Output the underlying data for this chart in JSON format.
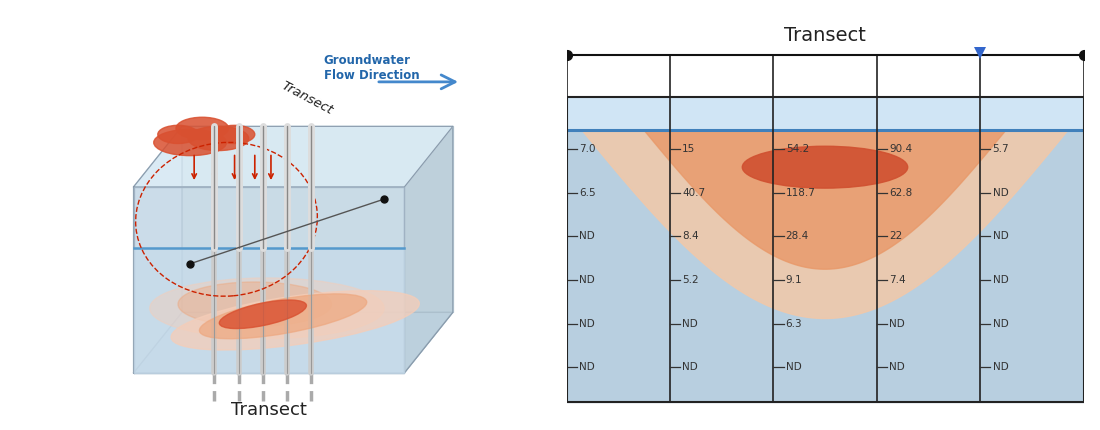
{
  "title_left": "Transect",
  "title_right": "Transect",
  "bg_color": "#ffffff",
  "left_panel": {
    "plume_outer": "#f5cdb8",
    "plume_mid": "#eda880",
    "plume_inner": "#d95030",
    "surface_plume_color": "#d95030",
    "water_table_color": "#5599cc",
    "box_face_front": "#ccdde8",
    "box_face_top": "#ddeef8",
    "box_face_right": "#b8ccd8",
    "box_face_left": "#c0d4e4",
    "box_edge": "#8899aa"
  },
  "right_panel": {
    "bg_blue_upper": "#d0e5f5",
    "bg_blue_lower": "#b8cfe0",
    "water_line_color": "#4080bb",
    "plume_outer": "#f2c8a8",
    "plume_mid": "#e89868",
    "plume_inner": "#d05030",
    "grid_color": "#222222",
    "text_color": "#333333",
    "tick_color": "#333333",
    "wire_color": "#111111",
    "triangle_color": "#3366cc"
  },
  "grid_data": [
    [
      "7.0",
      "15",
      "54.2",
      "90.4",
      "5.7"
    ],
    [
      "6.5",
      "40.7",
      "118.7",
      "62.8",
      "ND"
    ],
    [
      "ND",
      "8.4",
      "28.4",
      "22",
      "ND"
    ],
    [
      "ND",
      "5.2",
      "9.1",
      "7.4",
      "ND"
    ],
    [
      "ND",
      "ND",
      "6.3",
      "ND",
      "ND"
    ],
    [
      "ND",
      "ND",
      "ND",
      "ND",
      "ND"
    ]
  ],
  "n_cols": 5,
  "n_rows": 6
}
